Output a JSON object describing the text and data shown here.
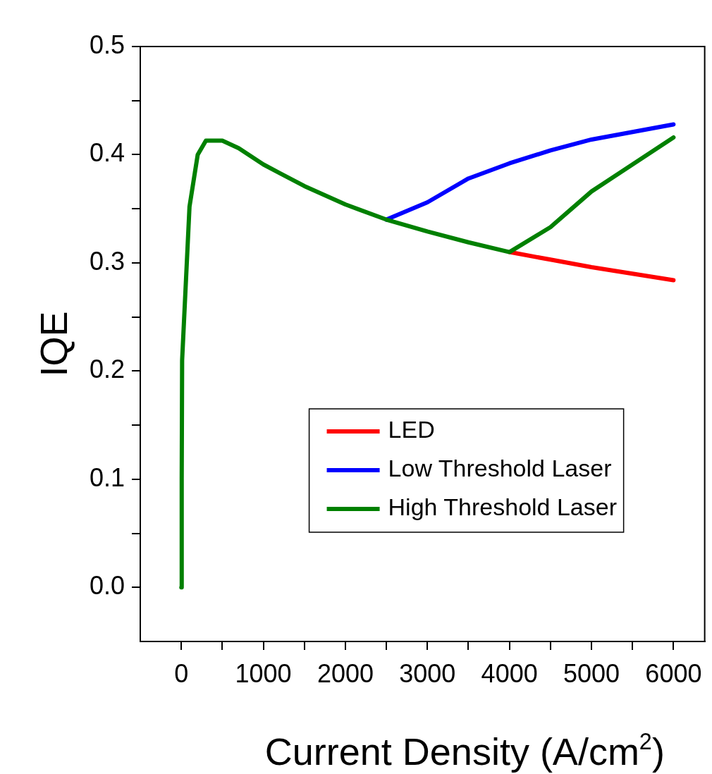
{
  "chart_data": {
    "type": "line",
    "xlabel": "Current Density (A/cm$^{2}$)",
    "ylabel": "IQE",
    "xlim": [
      -500,
      6380
    ],
    "ylim": [
      -0.05,
      0.5
    ],
    "xticks": [
      0,
      {
        "value": 500,
        "label": null
      },
      1000,
      {
        "value": 1500,
        "label": null
      },
      2000,
      {
        "value": 2500,
        "label": null
      },
      3000,
      {
        "value": 3500,
        "label": null
      },
      4000,
      {
        "value": 4500,
        "label": null
      },
      5000,
      {
        "value": 5500,
        "label": null
      },
      6000
    ],
    "yticks": [
      {
        "value": 0.0,
        "label": "0.0"
      },
      {
        "value": 0.05,
        "label": null
      },
      0.1,
      {
        "value": 0.15,
        "label": null
      },
      0.2,
      {
        "value": 0.25,
        "label": null
      },
      0.3,
      {
        "value": 0.35,
        "label": null
      },
      0.4,
      {
        "value": 0.45,
        "label": null
      },
      0.5
    ],
    "grid": false,
    "legend": "right",
    "marker": "none",
    "line_style": "solid",
    "series": [
      {
        "name": "LED",
        "color": "#ff0000",
        "x": [
          4000,
          4500,
          5000,
          6000
        ],
        "values": [
          0.31,
          0.303,
          0.296,
          0.284
        ]
      },
      {
        "name": "Low Threshold Laser",
        "color": "#0000ff",
        "x": [
          2500,
          3000,
          3500,
          4000,
          4500,
          5000,
          6000
        ],
        "values": [
          0.34,
          0.356,
          0.378,
          0.392,
          0.404,
          0.414,
          0.428
        ]
      },
      {
        "name": "High Threshold Laser",
        "color": "#008000",
        "x": [
          0,
          5,
          10,
          100,
          200,
          300,
          500,
          700,
          1000,
          1200,
          1500,
          2000,
          2500,
          3000,
          3500,
          4000,
          4500,
          5000,
          6000
        ],
        "values": [
          0.0,
          0.1,
          0.21,
          0.352,
          0.4,
          0.413,
          0.413,
          0.406,
          0.391,
          0.383,
          0.371,
          0.354,
          0.34,
          0.329,
          0.319,
          0.31,
          0.333,
          0.366,
          0.416
        ]
      }
    ]
  }
}
